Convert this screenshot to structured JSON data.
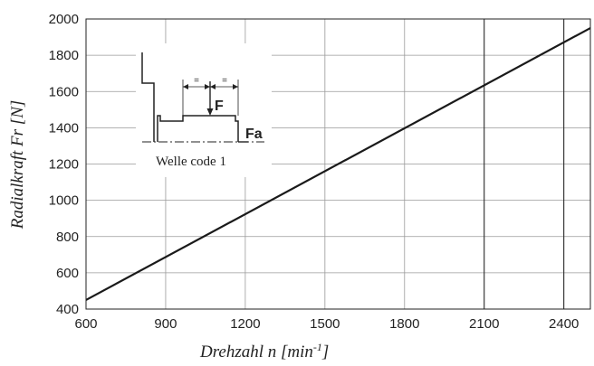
{
  "chart_data": {
    "type": "line",
    "xlabel": "Drehzahl n [min",
    "xlabel_sup": "-1",
    "xlabel_close": "]",
    "ylabel": "Radialkraft Fr [N]",
    "xlim": [
      600,
      2500
    ],
    "ylim": [
      400,
      2000
    ],
    "x_ticks": [
      600,
      900,
      1200,
      1500,
      1800,
      2100,
      2400
    ],
    "y_ticks": [
      400,
      600,
      800,
      1000,
      1200,
      1400,
      1600,
      1800,
      2000
    ],
    "grid": true,
    "colors": {
      "line": "#1a1a1a",
      "grid": "#9a9a9a",
      "axis": "#222222"
    },
    "series": [
      {
        "x": [
          600,
          2500
        ],
        "y": [
          450,
          1950
        ]
      }
    ],
    "vertical_markers": [
      2100,
      2400
    ],
    "inset": {
      "caption": "Welle code 1",
      "force_label": "F",
      "axial_label": "Fa",
      "equal_marks": [
        "=",
        "="
      ]
    }
  }
}
